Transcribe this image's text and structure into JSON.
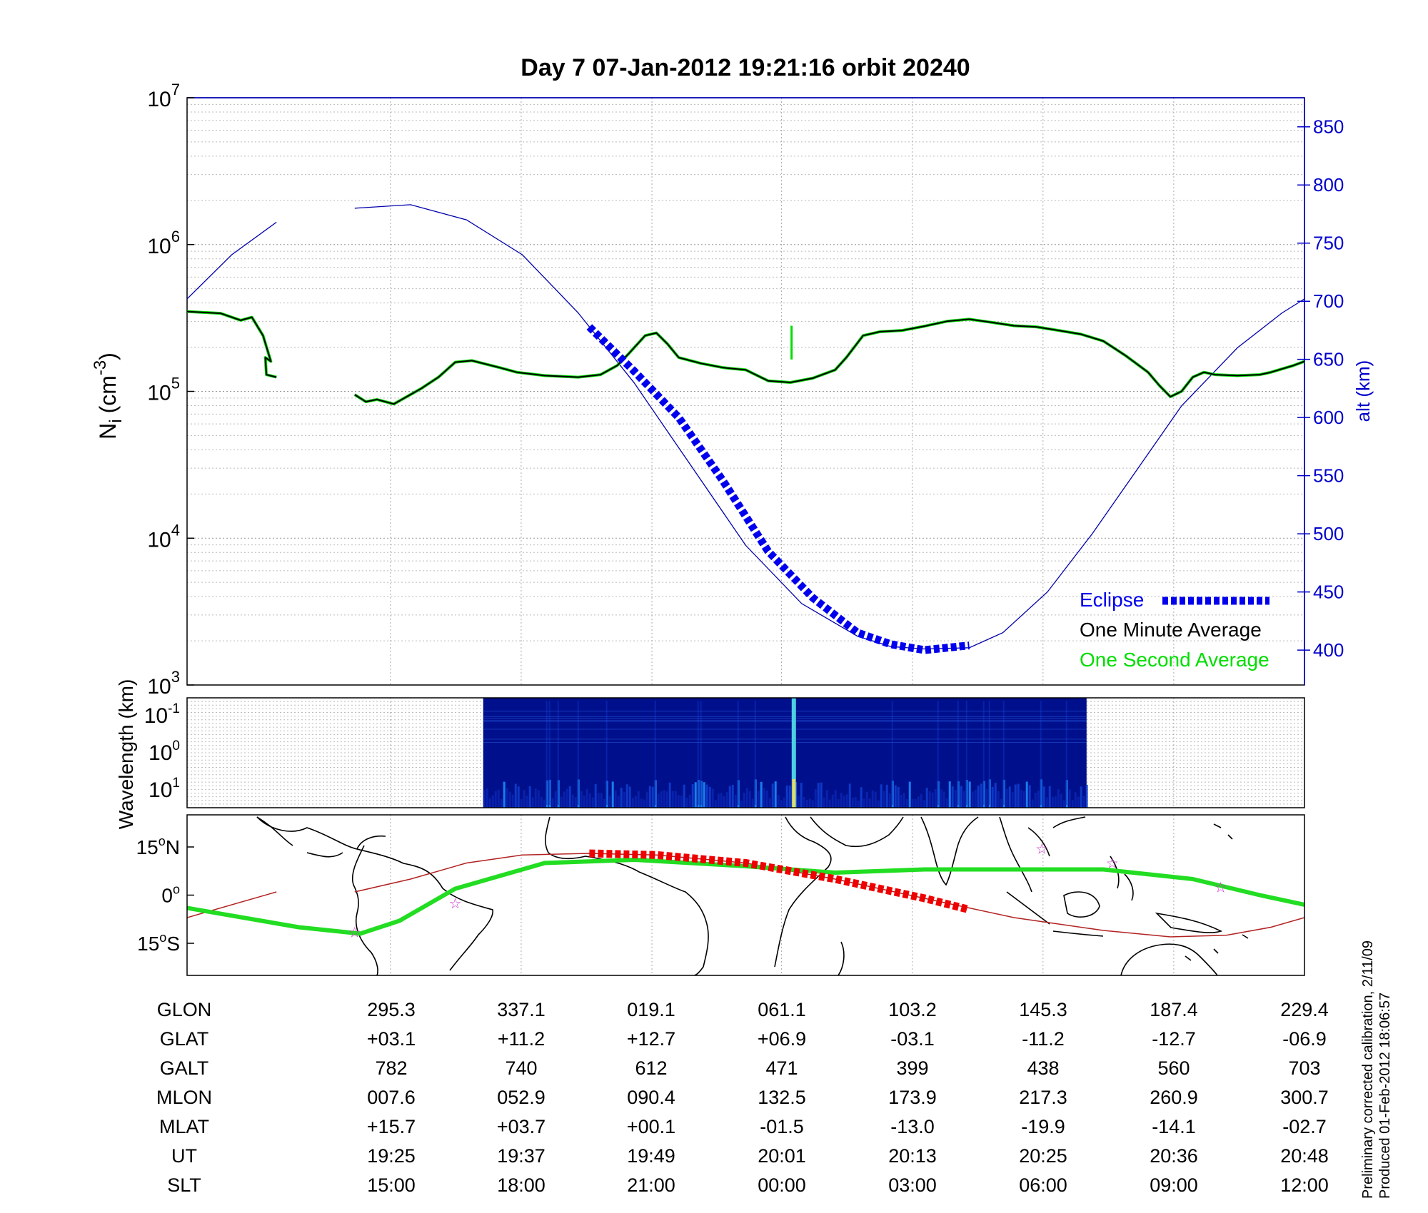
{
  "title": "Day 7  07-Jan-2012 19:21:16   orbit 20240",
  "colors": {
    "density": "#000000",
    "density_1s": "#00dd00",
    "altitude": "#0000aa",
    "eclipse": "#0000ee",
    "eclipse_track": "#ee0000",
    "ground_track": "#22dd22",
    "stars": "#cc33cc"
  },
  "chart_data": [
    {
      "type": "line",
      "panel": "density",
      "y_scale": "log",
      "ylim": [
        1000,
        10000000
      ],
      "ylabel": "N",
      "ylabel_sub": "i",
      "ylabel_unit": "(cm",
      "ylabel_unit_exp": "-3",
      "ylabel_unit_close": ")",
      "y_ticks": [
        {
          "base": "10",
          "exp": "3",
          "value": 1000
        },
        {
          "base": "10",
          "exp": "4",
          "value": 10000
        },
        {
          "base": "10",
          "exp": "5",
          "value": 100000
        },
        {
          "base": "10",
          "exp": "6",
          "value": 1000000
        },
        {
          "base": "10",
          "exp": "7",
          "value": 10000000
        }
      ],
      "y2label": "alt (km)",
      "y2lim": [
        370,
        875
      ],
      "y2_ticks": [
        "400",
        "450",
        "500",
        "550",
        "600",
        "650",
        "700",
        "750",
        "800",
        "850"
      ],
      "xlim": [
        0,
        1
      ],
      "legend": [
        {
          "label": "Eclipse",
          "color": "#0000ee"
        },
        {
          "label": "One Minute Average",
          "color": "#000000"
        },
        {
          "label": "One Second Average",
          "color": "#00dd00"
        }
      ],
      "series": [
        {
          "name": "One Minute Average",
          "segments": [
            [
              [
                0.0,
                350000
              ],
              [
                0.03,
                340000
              ],
              [
                0.048,
                305000
              ],
              [
                0.058,
                320000
              ],
              [
                0.068,
                240000
              ],
              [
                0.075,
                160000
              ],
              [
                0.07,
                170000
              ],
              [
                0.071,
                130000
              ],
              [
                0.08,
                125000
              ]
            ],
            [
              [
                0.15,
                95000
              ],
              [
                0.16,
                85000
              ],
              [
                0.17,
                88000
              ],
              [
                0.185,
                82000
              ],
              [
                0.21,
                105000
              ],
              [
                0.225,
                125000
              ],
              [
                0.24,
                158000
              ],
              [
                0.255,
                162000
              ],
              [
                0.28,
                145000
              ],
              [
                0.295,
                135000
              ],
              [
                0.32,
                128000
              ],
              [
                0.35,
                125000
              ],
              [
                0.37,
                130000
              ],
              [
                0.385,
                150000
              ],
              [
                0.395,
                180000
              ],
              [
                0.41,
                240000
              ],
              [
                0.42,
                250000
              ],
              [
                0.43,
                210000
              ],
              [
                0.44,
                170000
              ],
              [
                0.46,
                155000
              ],
              [
                0.48,
                145000
              ],
              [
                0.5,
                140000
              ],
              [
                0.52,
                118000
              ],
              [
                0.54,
                115000
              ],
              [
                0.56,
                123000
              ],
              [
                0.58,
                140000
              ],
              [
                0.59,
                170000
              ],
              [
                0.605,
                240000
              ],
              [
                0.62,
                255000
              ],
              [
                0.64,
                260000
              ],
              [
                0.66,
                278000
              ],
              [
                0.68,
                300000
              ],
              [
                0.7,
                310000
              ],
              [
                0.72,
                295000
              ],
              [
                0.74,
                280000
              ],
              [
                0.76,
                275000
              ],
              [
                0.78,
                260000
              ],
              [
                0.8,
                245000
              ],
              [
                0.82,
                220000
              ],
              [
                0.84,
                175000
              ],
              [
                0.86,
                135000
              ],
              [
                0.87,
                110000
              ],
              [
                0.88,
                92000
              ],
              [
                0.89,
                100000
              ],
              [
                0.9,
                125000
              ],
              [
                0.91,
                135000
              ],
              [
                0.92,
                130000
              ],
              [
                0.94,
                128000
              ],
              [
                0.96,
                130000
              ],
              [
                0.97,
                135000
              ],
              [
                0.99,
                150000
              ],
              [
                1.0,
                160000
              ]
            ]
          ]
        },
        {
          "name": "Altitude",
          "axis": "y2",
          "segments": [
            [
              [
                0.0,
                702
              ],
              [
                0.04,
                740
              ],
              [
                0.08,
                768
              ]
            ],
            [
              [
                0.15,
                780
              ],
              [
                0.2,
                783
              ],
              [
                0.25,
                770
              ],
              [
                0.3,
                740
              ],
              [
                0.35,
                690
              ],
              [
                0.4,
                630
              ],
              [
                0.45,
                560
              ],
              [
                0.5,
                490
              ],
              [
                0.55,
                440
              ],
              [
                0.6,
                412
              ],
              [
                0.63,
                403
              ],
              [
                0.66,
                401
              ],
              [
                0.7,
                402
              ],
              [
                0.73,
                415
              ],
              [
                0.77,
                450
              ],
              [
                0.81,
                500
              ],
              [
                0.85,
                555
              ],
              [
                0.89,
                610
              ],
              [
                0.94,
                660
              ],
              [
                0.98,
                690
              ],
              [
                1.0,
                702
              ]
            ]
          ]
        },
        {
          "name": "Eclipse",
          "axis": "y2",
          "segments": [
            [
              [
                0.36,
                678
              ],
              [
                0.4,
                640
              ],
              [
                0.44,
                600
              ],
              [
                0.48,
                545
              ],
              [
                0.52,
                485
              ],
              [
                0.56,
                445
              ],
              [
                0.6,
                415
              ],
              [
                0.63,
                405
              ],
              [
                0.66,
                400
              ],
              [
                0.68,
                402
              ],
              [
                0.7,
                404
              ]
            ]
          ]
        }
      ]
    },
    {
      "type": "heatmap",
      "panel": "spectrogram",
      "ylabel": "Wavelength (km)",
      "y_ticks": [
        {
          "base": "10",
          "exp": "-1"
        },
        {
          "base": "10",
          "exp": "0"
        },
        {
          "base": "10",
          "exp": "1"
        }
      ],
      "x_extent": [
        0.265,
        0.805
      ],
      "spike_x": 0.543
    },
    {
      "type": "line",
      "panel": "map",
      "ylim": [
        -25,
        25
      ],
      "y_ticks": [
        {
          "value": 15,
          "label": "15",
          "deg": "o",
          "hemi": "N"
        },
        {
          "value": 0,
          "label": "0",
          "deg": "o",
          "hemi": ""
        },
        {
          "value": -15,
          "label": "15",
          "deg": "o",
          "hemi": "S"
        }
      ],
      "series": [
        {
          "name": "Dip equator",
          "points": [
            [
              0.0,
              -4
            ],
            [
              0.1,
              -10
            ],
            [
              0.155,
              -12
            ],
            [
              0.19,
              -8
            ],
            [
              0.24,
              2
            ],
            [
              0.32,
              10
            ],
            [
              0.4,
              11
            ],
            [
              0.5,
              9
            ],
            [
              0.58,
              7
            ],
            [
              0.66,
              8
            ],
            [
              0.74,
              8
            ],
            [
              0.82,
              8
            ],
            [
              0.9,
              5
            ],
            [
              0.96,
              0
            ],
            [
              1.0,
              -3
            ]
          ]
        },
        {
          "name": "Orbit track",
          "points": [
            [
              0.0,
              -7
            ],
            [
              0.08,
              1
            ]
          ]
        },
        {
          "name": "Orbit track 2",
          "points": [
            [
              0.15,
              1
            ],
            [
              0.2,
              5
            ],
            [
              0.25,
              10
            ],
            [
              0.3,
              12.5
            ],
            [
              0.36,
              13
            ],
            [
              0.42,
              12.5
            ],
            [
              0.5,
              10
            ],
            [
              0.58,
              5
            ],
            [
              0.66,
              -1
            ],
            [
              0.74,
              -7
            ],
            [
              0.82,
              -11
            ],
            [
              0.88,
              -13
            ],
            [
              0.93,
              -12.5
            ],
            [
              0.97,
              -10
            ],
            [
              1.0,
              -7
            ]
          ]
        },
        {
          "name": "Eclipse track",
          "points": [
            [
              0.36,
              13
            ],
            [
              0.42,
              12.5
            ],
            [
              0.5,
              10
            ],
            [
              0.58,
              5
            ],
            [
              0.66,
              -1
            ],
            [
              0.7,
              -4.5
            ]
          ]
        }
      ],
      "stars": [
        [
          0.15,
          -11.5
        ],
        [
          0.24,
          -2.5
        ],
        [
          0.765,
          14.5
        ],
        [
          0.828,
          10
        ],
        [
          0.925,
          2.5
        ]
      ]
    }
  ],
  "table": {
    "rows": [
      {
        "label": "GLON",
        "values": [
          "295.3",
          "337.1",
          "019.1",
          "061.1",
          "103.2",
          "145.3",
          "187.4",
          "229.4"
        ]
      },
      {
        "label": "GLAT",
        "values": [
          "+03.1",
          "+11.2",
          "+12.7",
          "+06.9",
          "-03.1",
          "-11.2",
          "-12.7",
          "-06.9"
        ]
      },
      {
        "label": "GALT",
        "values": [
          "782",
          "740",
          "612",
          "471",
          "399",
          "438",
          "560",
          "703"
        ]
      },
      {
        "label": "MLON",
        "values": [
          "007.6",
          "052.9",
          "090.4",
          "132.5",
          "173.9",
          "217.3",
          "260.9",
          "300.7"
        ]
      },
      {
        "label": "MLAT",
        "values": [
          "+15.7",
          "+03.7",
          "+00.1",
          "-01.5",
          "-13.0",
          "-19.9",
          "-14.1",
          "-02.7"
        ]
      },
      {
        "label": "UT",
        "values": [
          "19:25",
          "19:37",
          "19:49",
          "20:01",
          "20:13",
          "20:25",
          "20:36",
          "20:48"
        ]
      },
      {
        "label": "SLT",
        "values": [
          "15:00",
          "18:00",
          "21:00",
          "00:00",
          "03:00",
          "06:00",
          "09:00",
          "12:00"
        ]
      }
    ]
  },
  "footnote": {
    "line1": "Preliminary corrected calibration, 2/11/09",
    "line2": "Produced 01-Feb-2012 18:06:57"
  }
}
